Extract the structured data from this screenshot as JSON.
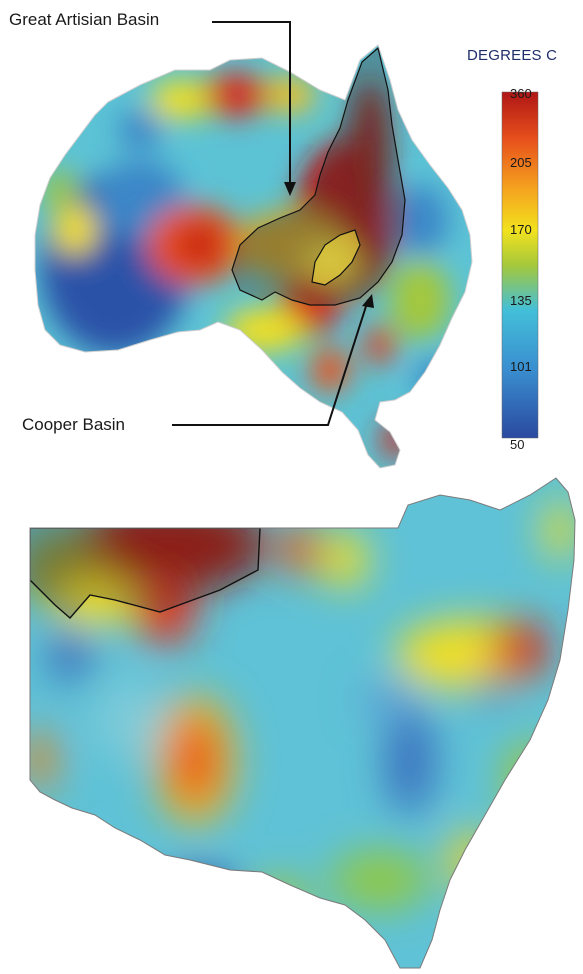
{
  "labels": {
    "great_artisian_basin": "Great Artisian Basin",
    "cooper_basin": "Cooper Basin"
  },
  "legend": {
    "title": "DEGREES C",
    "ticks": [
      "360",
      "205",
      "170",
      "135",
      "101",
      "50"
    ],
    "colors": [
      "#b01616",
      "#e8521c",
      "#f5a31f",
      "#f2e21e",
      "#a5c83a",
      "#43bfd8",
      "#3a8fd0",
      "#2a4aa0"
    ]
  },
  "palette": {
    "very_hot": "#a5140f",
    "hot": "#e3361c",
    "warm": "#f08a1f",
    "yellow": "#f2df1e",
    "green": "#9cc63e",
    "cyan": "#5ac3d6",
    "blue": "#3b86c8",
    "deep_blue": "#2b4fa5",
    "basin_overlay": "#3a3a3a"
  }
}
